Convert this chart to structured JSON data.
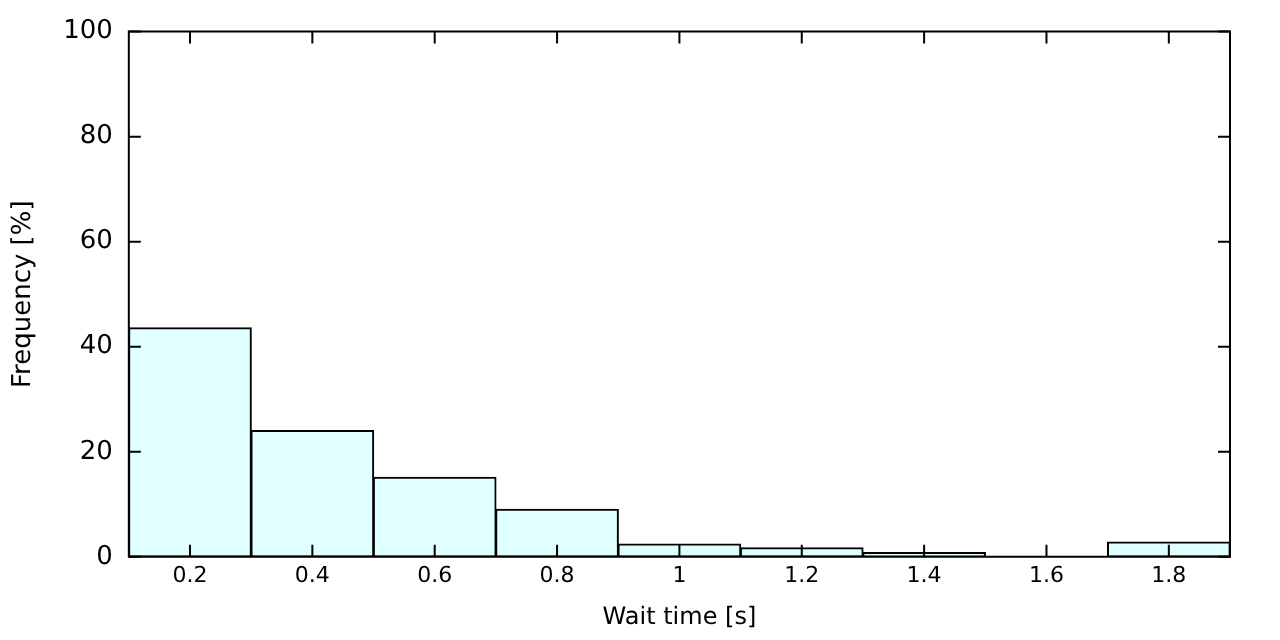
{
  "chart_data": {
    "type": "histogram",
    "xlabel": "Wait time [s]",
    "ylabel": "Frequency [%]",
    "bins": [
      0.1,
      0.3,
      0.5,
      0.7,
      0.9,
      1.1,
      1.3,
      1.5,
      1.7,
      1.9
    ],
    "values": [
      43.6,
      24,
      15.1,
      9,
      2.4,
      1.7,
      0.8,
      0,
      2.8
    ],
    "color": "#e0ffff",
    "xlim": [
      0.1,
      1.9
    ],
    "xticks": [
      0.2,
      0.4,
      0.6,
      0.8,
      1.0,
      1.2,
      1.4,
      1.6,
      1.8
    ],
    "ylim": [
      0,
      100
    ],
    "yticks": [
      0,
      20,
      40,
      60,
      80,
      100
    ],
    "grid": false,
    "legend": false
  }
}
